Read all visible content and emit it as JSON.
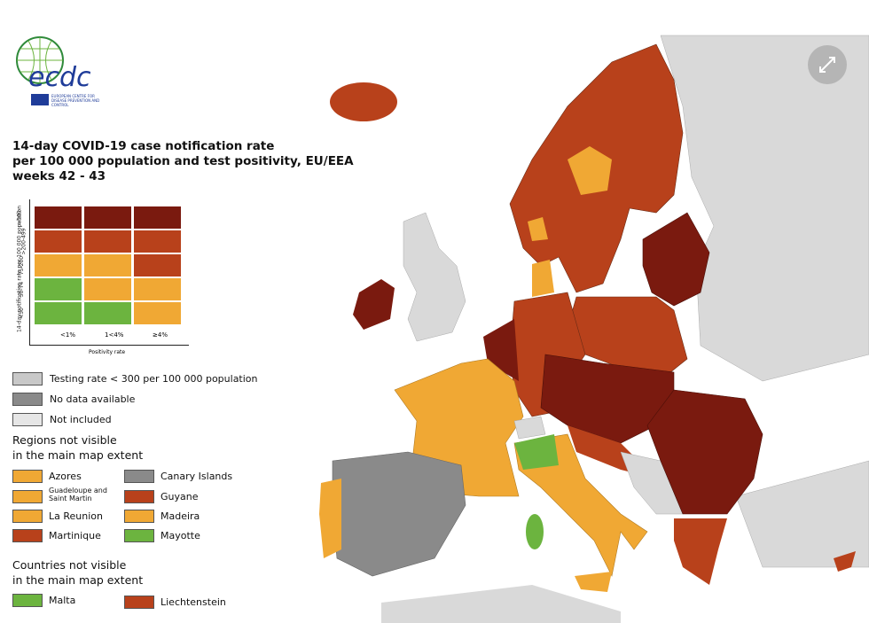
{
  "logo": {
    "text": "ecdc",
    "subtitle": "EUROPEAN CENTRE FOR DISEASE PREVENTION AND CONTROL"
  },
  "title": [
    "14-day COVID-19 case notification rate",
    "per 100 000 population and test positivity, EU/EEA",
    "weeks 42 - 43"
  ],
  "matrix": {
    "y_label": "14-day notification rate per 100 000 population",
    "x_label": "Positivity rate",
    "columns": [
      "<1%",
      "1<4%",
      "≥4%"
    ],
    "rows": [
      ">500",
      ">200-499",
      "75-200",
      "50-74",
      "<50"
    ]
  },
  "legend": {
    "status": [
      "Testing rate < 300 per 100 000 population",
      "No data available",
      "Not included"
    ],
    "regions_heading": [
      "Regions not visible",
      "in the main map extent"
    ],
    "regions": [
      [
        "Azores",
        "Canary Islands"
      ],
      [
        "Guadeloupe and Saint Martin",
        "Guyane"
      ],
      [
        "La Reunion",
        "Madeira"
      ],
      [
        "Martinique",
        "Mayotte"
      ]
    ],
    "countries_heading": [
      "Countries not visible",
      "in the main map extent"
    ],
    "countries": [
      "Malta",
      "Liechtenstein"
    ]
  }
}
